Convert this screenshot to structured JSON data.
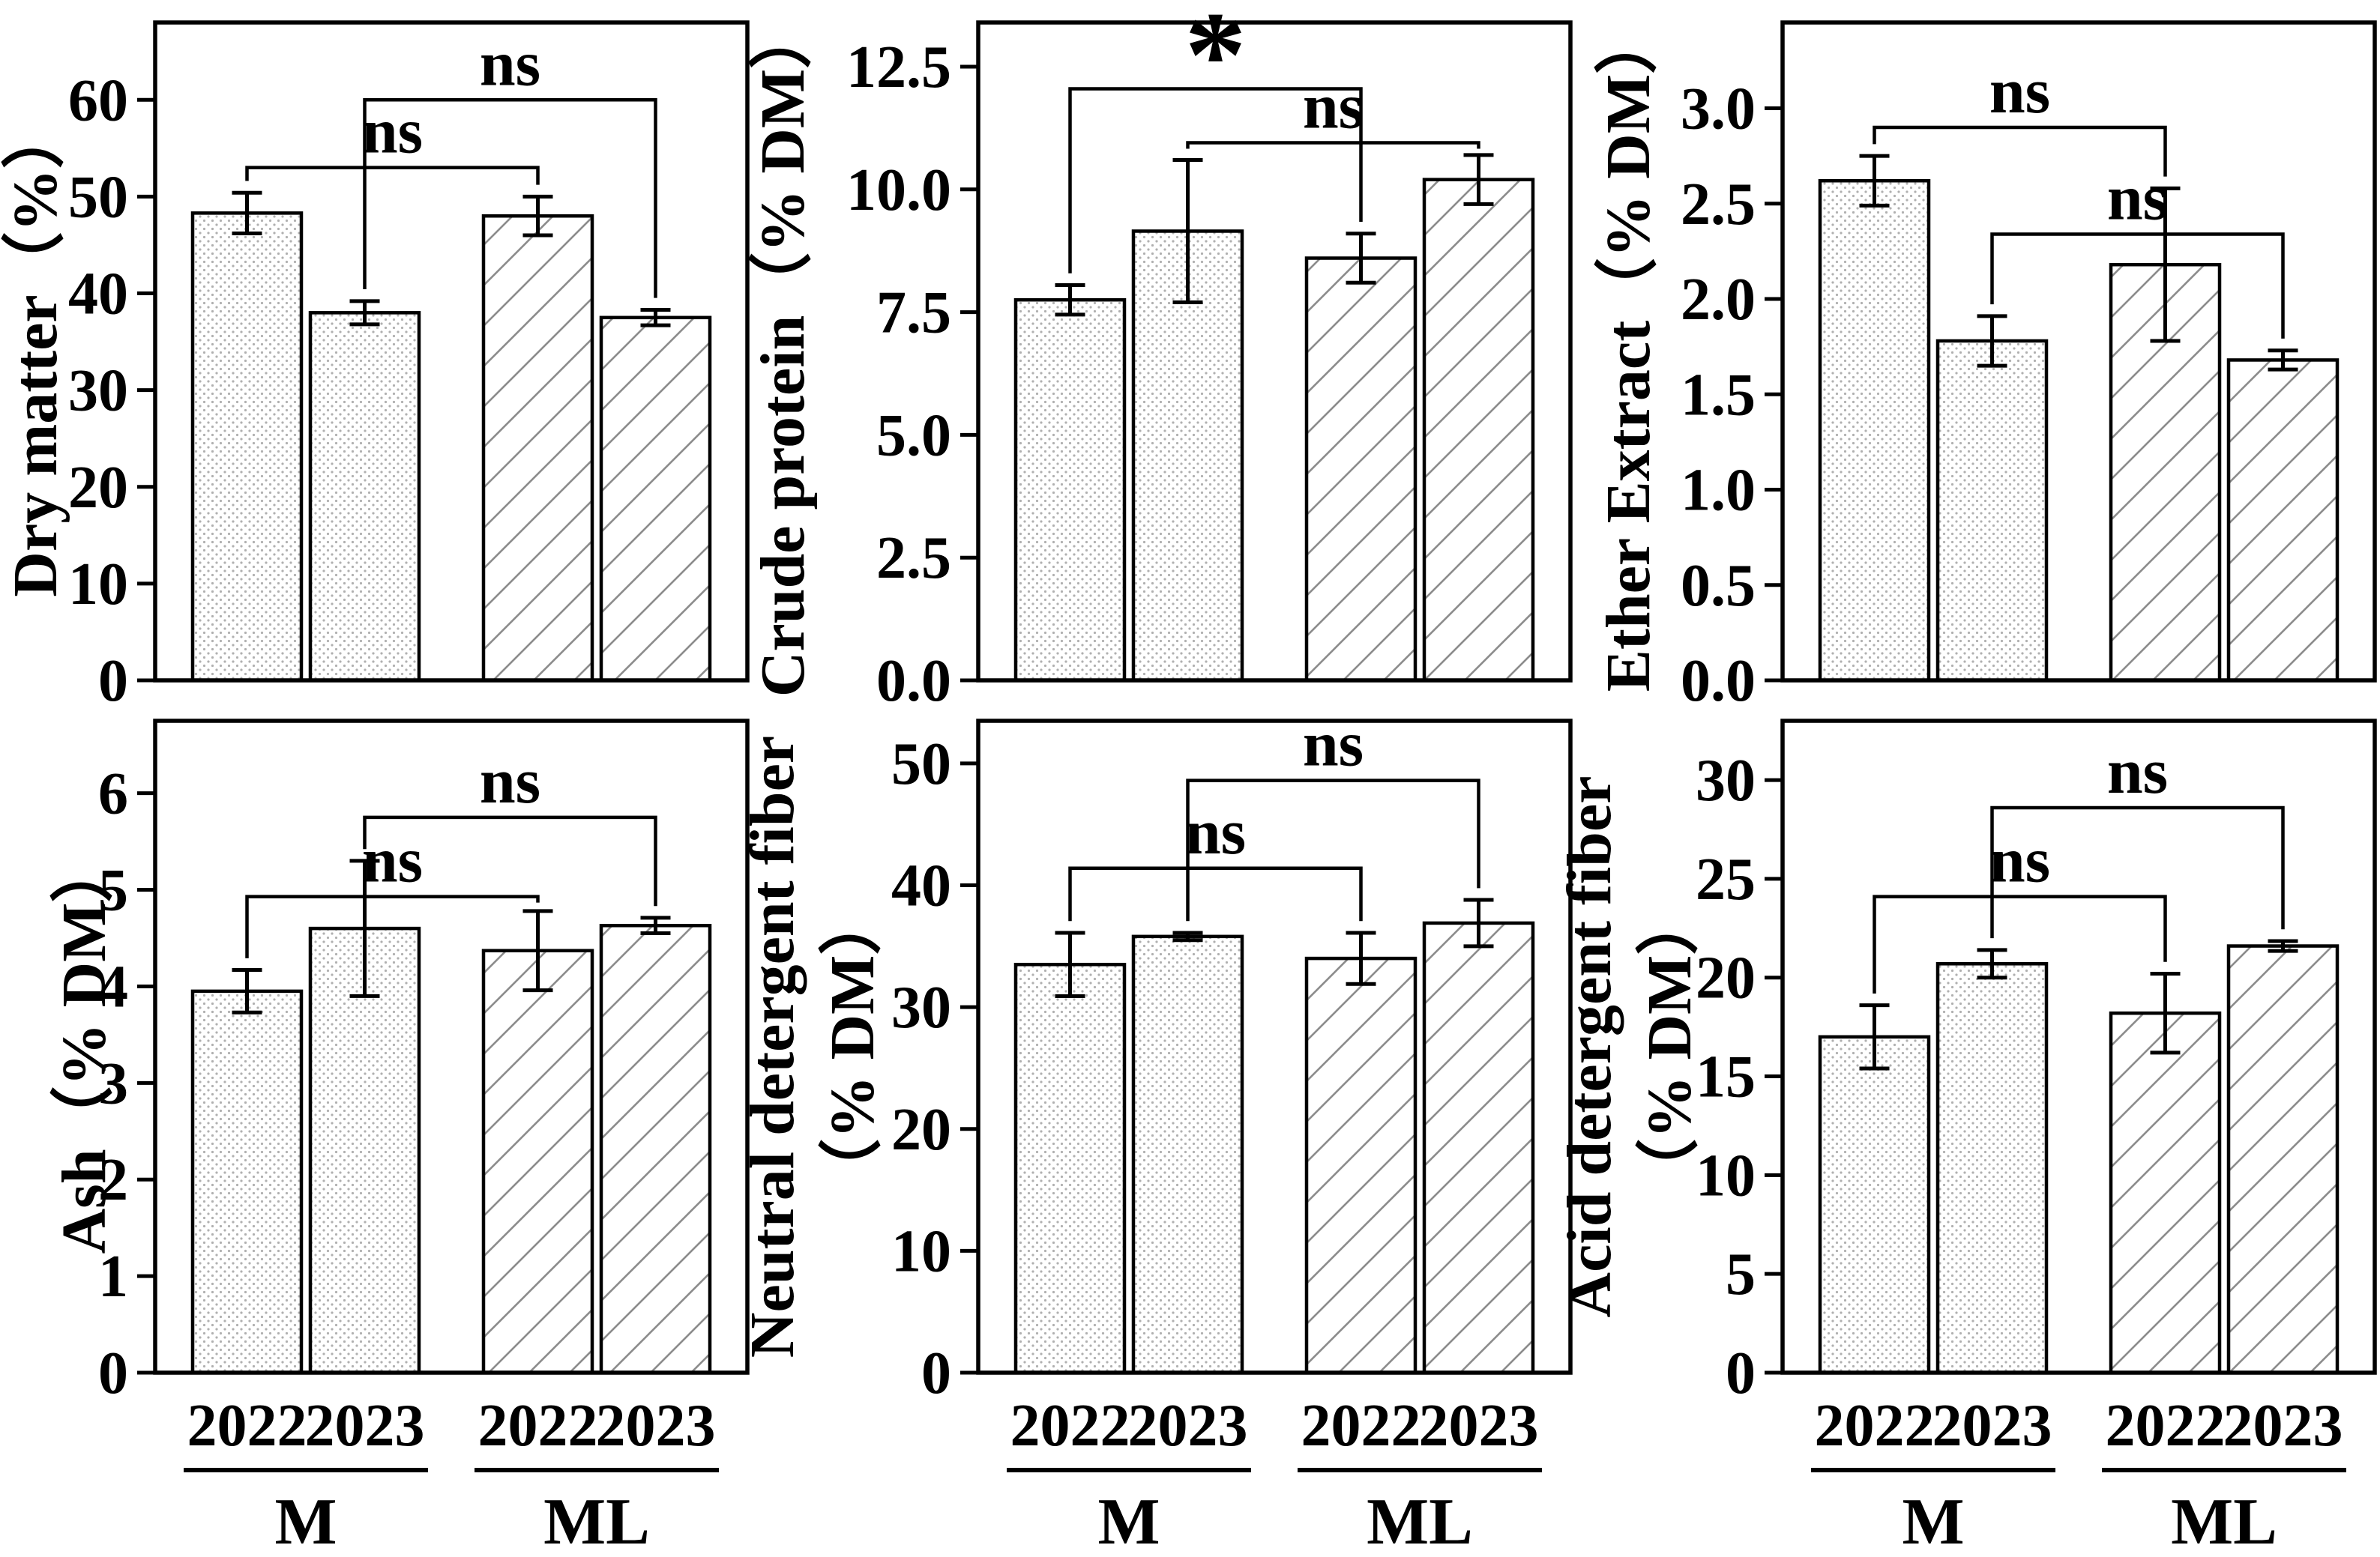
{
  "figure": {
    "background": "#ffffff",
    "ink": "#000000",
    "dot_color": "#b0b0b0",
    "hatch_color": "#8c8c8c",
    "description_labels": {
      "not_significant": "ns",
      "significant": "*"
    }
  },
  "group_labels": [
    "M",
    "ML"
  ],
  "year_labels": [
    "2022",
    "2023",
    "2022",
    "2023"
  ],
  "chart_data": [
    {
      "type": "bar",
      "ylabel": "Dry matter（%）",
      "ylabel_lines": [
        "Dry matter（%）"
      ],
      "categories": [
        "M 2022",
        "M 2023",
        "ML 2022",
        "ML 2023"
      ],
      "values": [
        48.3,
        38.0,
        48.0,
        37.5
      ],
      "errors": [
        2.1,
        1.2,
        2.0,
        0.8
      ],
      "yticks": [
        0,
        10,
        20,
        30,
        40,
        50,
        60
      ],
      "ytick_labels": [
        "0",
        "10",
        "20",
        "30",
        "40",
        "50",
        "60"
      ],
      "ylim": [
        0,
        68
      ],
      "grid": false,
      "brackets": [
        {
          "from": 0,
          "to": 2,
          "height": 53.0,
          "label": "ns"
        },
        {
          "from": 1,
          "to": 3,
          "height": 60.0,
          "label": "ns"
        }
      ],
      "show_x_labels": false
    },
    {
      "type": "bar",
      "ylabel": "Crude protein（% DM）",
      "ylabel_lines": [
        "Crude protein（% DM）"
      ],
      "categories": [
        "M 2022",
        "M 2023",
        "ML 2022",
        "ML 2023"
      ],
      "values": [
        7.75,
        9.15,
        8.6,
        10.2
      ],
      "errors": [
        0.3,
        1.45,
        0.5,
        0.5
      ],
      "yticks": [
        0,
        2.5,
        5,
        7.5,
        10,
        12.5
      ],
      "ytick_labels": [
        "0.0",
        "2.5",
        "5.0",
        "7.5",
        "10.0",
        "12.5"
      ],
      "ylim": [
        0,
        13.4
      ],
      "grid": false,
      "brackets": [
        {
          "from": 0,
          "to": 2,
          "height": 12.05,
          "label": "*"
        },
        {
          "from": 1,
          "to": 3,
          "height": 10.95,
          "label": "ns"
        }
      ],
      "show_x_labels": false
    },
    {
      "type": "bar",
      "ylabel": "Ether Extract（% DM）",
      "ylabel_lines": [
        "Ether Extract（% DM）"
      ],
      "categories": [
        "M 2022",
        "M 2023",
        "ML 2022",
        "ML 2023"
      ],
      "values": [
        2.62,
        1.78,
        2.18,
        1.68
      ],
      "errors": [
        0.13,
        0.13,
        0.4,
        0.05
      ],
      "yticks": [
        0,
        0.5,
        1,
        1.5,
        2,
        2.5,
        3
      ],
      "ytick_labels": [
        "0.0",
        "0.5",
        "1.0",
        "1.5",
        "2.0",
        "2.5",
        "3.0"
      ],
      "ylim": [
        0,
        3.45
      ],
      "grid": false,
      "brackets": [
        {
          "from": 0,
          "to": 2,
          "height": 2.9,
          "label": "ns"
        },
        {
          "from": 1,
          "to": 3,
          "height": 2.34,
          "label": "ns"
        }
      ],
      "show_x_labels": false
    },
    {
      "type": "bar",
      "ylabel": "Ash（% DM）",
      "ylabel_lines": [
        "Ash（% DM）"
      ],
      "categories": [
        "M 2022",
        "M 2023",
        "ML 2022",
        "ML 2023"
      ],
      "values": [
        3.95,
        4.6,
        4.37,
        4.63
      ],
      "errors": [
        0.22,
        0.7,
        0.41,
        0.08
      ],
      "yticks": [
        0,
        1,
        2,
        3,
        4,
        5,
        6
      ],
      "ytick_labels": [
        "0",
        "1",
        "2",
        "3",
        "4",
        "5",
        "6"
      ],
      "ylim": [
        0,
        6.75
      ],
      "grid": false,
      "brackets": [
        {
          "from": 0,
          "to": 2,
          "height": 4.93,
          "label": "ns"
        },
        {
          "from": 1,
          "to": 3,
          "height": 5.75,
          "label": "ns"
        }
      ],
      "show_x_labels": true
    },
    {
      "type": "bar",
      "ylabel": "Neutral detergent fiber（% DM）",
      "ylabel_lines": [
        "Neutral detergent fiber",
        "（% DM）"
      ],
      "categories": [
        "M 2022",
        "M 2023",
        "ML 2022",
        "ML 2023"
      ],
      "values": [
        33.5,
        35.8,
        34.0,
        36.9
      ],
      "errors": [
        2.6,
        0.3,
        2.1,
        1.9
      ],
      "yticks": [
        0,
        10,
        20,
        30,
        40,
        50
      ],
      "ytick_labels": [
        "0",
        "10",
        "20",
        "30",
        "40",
        "50"
      ],
      "ylim": [
        0,
        53.5
      ],
      "grid": false,
      "brackets": [
        {
          "from": 0,
          "to": 2,
          "height": 41.4,
          "label": "ns"
        },
        {
          "from": 1,
          "to": 3,
          "height": 48.6,
          "label": "ns"
        }
      ],
      "show_x_labels": true
    },
    {
      "type": "bar",
      "ylabel": "Acid detergent fiber（% DM）",
      "ylabel_lines": [
        "Acid detergent fiber",
        "（% DM）"
      ],
      "categories": [
        "M 2022",
        "M 2023",
        "ML 2022",
        "ML 2023"
      ],
      "values": [
        17.0,
        20.7,
        18.2,
        21.6
      ],
      "errors": [
        1.6,
        0.7,
        2.0,
        0.25
      ],
      "yticks": [
        0,
        5,
        10,
        15,
        20,
        25,
        30
      ],
      "ytick_labels": [
        "0",
        "5",
        "10",
        "15",
        "20",
        "25",
        "30"
      ],
      "ylim": [
        0,
        33
      ],
      "grid": false,
      "brackets": [
        {
          "from": 0,
          "to": 2,
          "height": 24.1,
          "label": "ns"
        },
        {
          "from": 1,
          "to": 3,
          "height": 28.6,
          "label": "ns"
        }
      ],
      "show_x_labels": true
    }
  ]
}
